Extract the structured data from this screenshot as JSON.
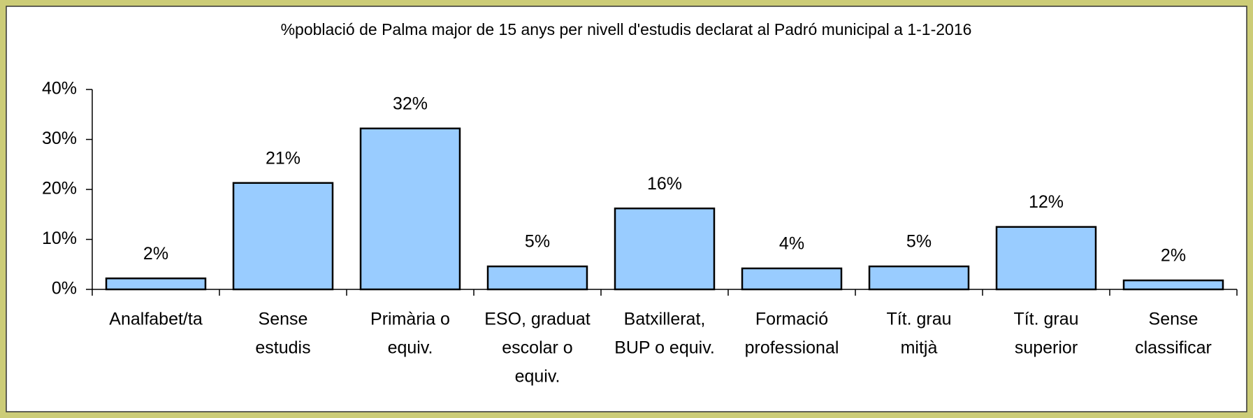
{
  "chart_data": {
    "type": "bar",
    "title": "%població de Palma major de 15 anys per nivell d'estudis declarat al Padró municipal a 1-1-2016",
    "categories": [
      [
        "Analfabet/ta"
      ],
      [
        "Sense",
        "estudis"
      ],
      [
        "Primària o",
        "equiv."
      ],
      [
        "ESO, graduat",
        "escolar o",
        "equiv."
      ],
      [
        "Batxillerat,",
        "BUP o equiv."
      ],
      [
        "Formació",
        "professional"
      ],
      [
        "Tít. grau",
        "mitjà"
      ],
      [
        "Tít. grau",
        "superior"
      ],
      [
        "Sense",
        "classificar"
      ]
    ],
    "values": [
      2.2,
      21.3,
      32.2,
      4.6,
      16.2,
      4.2,
      4.6,
      12.5,
      1.8
    ],
    "value_labels": [
      "2%",
      "21%",
      "32%",
      "5%",
      "16%",
      "4%",
      "5%",
      "12%",
      "2%"
    ],
    "color": "#99ccff",
    "ylim": [
      0,
      40
    ],
    "yticks": [
      {
        "value": 0,
        "label": "0%"
      },
      {
        "value": 10,
        "label": "10%"
      },
      {
        "value": 20,
        "label": "20%"
      },
      {
        "value": 30,
        "label": "30%"
      },
      {
        "value": 40,
        "label": "40%"
      }
    ],
    "grid": false
  }
}
